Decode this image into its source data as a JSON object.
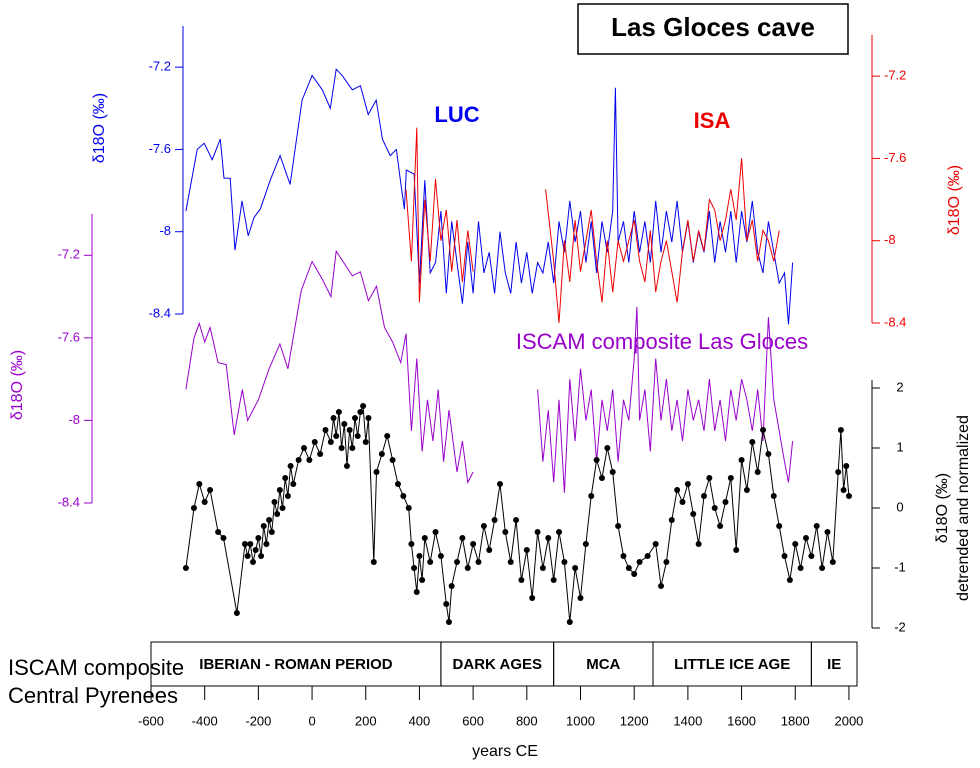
{
  "chart_data": [
    {
      "type": "line",
      "title": "Las Gloces cave",
      "ylabel": "δ18O (‰)",
      "ylim": [
        -8.4,
        -7.0
      ],
      "yticks": [
        -7.2,
        -7.6,
        -8,
        -8.4
      ],
      "series": [
        {
          "name": "LUC",
          "color": "#0000ee",
          "x": [
            -470,
            -428,
            -402,
            -372,
            -342,
            -328,
            -305,
            -287,
            -261,
            -238,
            -216,
            -193,
            -156,
            -119,
            -82,
            -37,
            0,
            38,
            68,
            90,
            112,
            150,
            180,
            209,
            239,
            262,
            291,
            314,
            329,
            344,
            351,
            380,
            400,
            420,
            440,
            460,
            480,
            500,
            520,
            540,
            560,
            580,
            600,
            620,
            640,
            660,
            680,
            700,
            720,
            740,
            760,
            780,
            800,
            820,
            840,
            860,
            880,
            900,
            920,
            940,
            960,
            980,
            1000,
            1020,
            1040,
            1060,
            1080,
            1100,
            1120,
            1130,
            1140,
            1160,
            1180,
            1200,
            1220,
            1240,
            1260,
            1280,
            1300,
            1320,
            1340,
            1360,
            1380,
            1400,
            1420,
            1440,
            1460,
            1480,
            1500,
            1520,
            1540,
            1560,
            1580,
            1600,
            1620,
            1640,
            1660,
            1680,
            1700,
            1720,
            1740,
            1760,
            1775,
            1790
          ],
          "values": [
            -7.9,
            -7.6,
            -7.57,
            -7.65,
            -7.55,
            -7.74,
            -7.74,
            -8.09,
            -7.85,
            -8.02,
            -7.93,
            -7.89,
            -7.75,
            -7.63,
            -7.77,
            -7.36,
            -7.24,
            -7.31,
            -7.4,
            -7.21,
            -7.24,
            -7.31,
            -7.29,
            -7.43,
            -7.36,
            -7.55,
            -7.63,
            -7.6,
            -7.75,
            -7.89,
            -7.7,
            -7.72,
            -8.25,
            -7.75,
            -8.2,
            -8.15,
            -7.9,
            -8.3,
            -7.95,
            -8.15,
            -8.35,
            -8.05,
            -8.3,
            -7.95,
            -8.2,
            -8.1,
            -8.3,
            -8.0,
            -8.2,
            -8.3,
            -8.05,
            -8.25,
            -8.1,
            -8.3,
            -8.15,
            -8.2,
            -8.05,
            -8.25,
            -7.95,
            -8.1,
            -7.85,
            -8.05,
            -7.9,
            -8.15,
            -7.95,
            -8.2,
            -7.95,
            -8.1,
            -7.9,
            -7.3,
            -8.05,
            -7.95,
            -8.15,
            -7.9,
            -8.1,
            -7.95,
            -8.15,
            -7.85,
            -8.1,
            -7.9,
            -8.05,
            -7.85,
            -8.1,
            -7.95,
            -8.15,
            -8.0,
            -8.1,
            -7.9,
            -8.15,
            -7.95,
            -8.1,
            -7.9,
            -8.15,
            -7.9,
            -8.05,
            -7.85,
            -8.1,
            -8.2,
            -7.95,
            -8.1,
            -8.25,
            -8.2,
            -8.45,
            -8.15
          ]
        }
      ]
    },
    {
      "type": "line",
      "ylabel": "δ18O (‰)",
      "ylim": [
        -8.4,
        -7.0
      ],
      "yticks": [
        -7.2,
        -7.6,
        -8,
        -8.4
      ],
      "series": [
        {
          "name": "ISA",
          "color": "#ee0000",
          "x": [
            350,
            370,
            390,
            400,
            420,
            440,
            460,
            480,
            500,
            520,
            540,
            560,
            580,
            600,
            740,
            870,
            900,
            920,
            940,
            960,
            980,
            1000,
            1020,
            1040,
            1060,
            1080,
            1100,
            1120,
            1140,
            1160,
            1180,
            1200,
            1220,
            1240,
            1260,
            1280,
            1300,
            1320,
            1340,
            1360,
            1380,
            1400,
            1420,
            1440,
            1460,
            1480,
            1500,
            1520,
            1540,
            1560,
            1580,
            1600,
            1620,
            1640,
            1660,
            1680,
            1700,
            1720,
            1740
          ],
          "values": [
            -7.75,
            -8.1,
            -7.45,
            -8.3,
            -7.8,
            -8.1,
            -7.7,
            -8.0,
            -7.85,
            -8.15,
            -7.9,
            -8.2,
            -7.95,
            -8.15,
            null,
            -7.75,
            -8.1,
            -8.4,
            -8.0,
            -8.2,
            -7.9,
            -8.15,
            -8.0,
            -7.85,
            -8.1,
            -8.3,
            -8.0,
            -8.25,
            -8.0,
            -8.1,
            -8.0,
            -7.9,
            -8.1,
            -8.2,
            -7.95,
            -8.25,
            -8.1,
            -8.0,
            -8.15,
            -8.3,
            -8.05,
            -7.9,
            -8.1,
            -7.95,
            -8.05,
            -7.8,
            -7.85,
            -8.0,
            -7.9,
            -7.75,
            -7.9,
            -7.6,
            -8.0,
            -7.9,
            -8.1,
            -7.95,
            -8.0,
            -8.1,
            -7.95
          ]
        }
      ]
    },
    {
      "type": "line",
      "ylabel": "δ18O (‰)",
      "ylim": [
        -8.4,
        -7.0
      ],
      "yticks": [
        -7.2,
        -7.6,
        -8,
        -8.4
      ],
      "series": [
        {
          "name": "ISCAM composite Las Gloces",
          "color": "#9900cc",
          "x": [
            -470,
            -440,
            -420,
            -400,
            -380,
            -350,
            -320,
            -290,
            -260,
            -240,
            -200,
            -160,
            -120,
            -90,
            -40,
            0,
            40,
            70,
            90,
            110,
            150,
            180,
            210,
            240,
            270,
            300,
            330,
            350,
            370,
            390,
            410,
            430,
            450,
            470,
            490,
            510,
            540,
            560,
            580,
            600,
            720,
            840,
            860,
            880,
            900,
            920,
            940,
            960,
            980,
            1000,
            1020,
            1040,
            1060,
            1080,
            1100,
            1120,
            1140,
            1160,
            1180,
            1200,
            1210,
            1220,
            1240,
            1260,
            1280,
            1300,
            1320,
            1340,
            1360,
            1380,
            1400,
            1420,
            1440,
            1460,
            1480,
            1500,
            1520,
            1540,
            1560,
            1580,
            1600,
            1620,
            1640,
            1660,
            1680,
            1700,
            1720,
            1740,
            1760,
            1775,
            1790
          ],
          "values": [
            -7.85,
            -7.6,
            -7.53,
            -7.62,
            -7.55,
            -7.72,
            -7.73,
            -8.07,
            -7.85,
            -8.0,
            -7.9,
            -7.75,
            -7.63,
            -7.75,
            -7.37,
            -7.23,
            -7.32,
            -7.4,
            -7.18,
            -7.22,
            -7.3,
            -7.28,
            -7.42,
            -7.35,
            -7.55,
            -7.62,
            -7.72,
            -7.58,
            -8.05,
            -7.7,
            -8.15,
            -7.9,
            -8.1,
            -7.85,
            -8.2,
            -7.95,
            -8.25,
            -8.1,
            -8.3,
            -8.25,
            null,
            -7.85,
            -8.2,
            -7.95,
            -8.3,
            -7.9,
            -8.35,
            -7.8,
            -8.1,
            -7.75,
            -8.0,
            -7.85,
            -8.2,
            -7.9,
            -8.05,
            -7.85,
            -8.2,
            -7.9,
            -8.0,
            -7.7,
            -7.45,
            -8.0,
            -7.85,
            -8.15,
            -7.7,
            -8.0,
            -7.8,
            -8.05,
            -7.9,
            -8.1,
            -7.85,
            -8.0,
            -7.9,
            -8.05,
            -7.8,
            -8.05,
            -7.9,
            -8.1,
            -7.85,
            -8.0,
            -7.8,
            -7.9,
            -8.05,
            -7.85,
            -8.1,
            -7.5,
            -7.9,
            -8.05,
            -8.2,
            -8.3,
            -8.1
          ]
        }
      ]
    },
    {
      "type": "line",
      "ylabel": [
        "δ18O (‰)",
        "detrended and normalized"
      ],
      "ylim": [
        -2,
        2
      ],
      "yticks": [
        2,
        1,
        0,
        -1,
        -2
      ],
      "xlabel": "years CE",
      "xlim": [
        -600,
        2030
      ],
      "xticks": [
        -600,
        -400,
        -200,
        0,
        200,
        400,
        600,
        800,
        1000,
        1200,
        1400,
        1600,
        1800,
        2000
      ],
      "periods": [
        {
          "label": "IBERIAN - ROMAN PERIOD",
          "start": -600,
          "end": 480
        },
        {
          "label": "DARK AGES",
          "start": 480,
          "end": 900
        },
        {
          "label": "MCA",
          "start": 900,
          "end": 1270
        },
        {
          "label": "LITTLE ICE AGE",
          "start": 1270,
          "end": 1860
        },
        {
          "label": "IE",
          "start": 1860,
          "end": 2030
        }
      ],
      "series": [
        {
          "name": "ISCAM composite Central Pyrenees",
          "color": "#000000",
          "markers": true,
          "x": [
            -470,
            -440,
            -420,
            -400,
            -380,
            -350,
            -330,
            -280,
            -250,
            -240,
            -230,
            -220,
            -210,
            -200,
            -190,
            -180,
            -170,
            -160,
            -150,
            -140,
            -130,
            -120,
            -110,
            -100,
            -90,
            -80,
            -70,
            -50,
            -30,
            -10,
            10,
            30,
            50,
            70,
            80,
            90,
            100,
            110,
            120,
            130,
            140,
            150,
            160,
            170,
            180,
            190,
            200,
            210,
            230,
            240,
            260,
            280,
            300,
            320,
            340,
            360,
            370,
            380,
            390,
            400,
            410,
            420,
            440,
            460,
            480,
            500,
            510,
            520,
            540,
            560,
            580,
            600,
            620,
            640,
            660,
            680,
            700,
            720,
            740,
            760,
            780,
            800,
            820,
            840,
            860,
            880,
            900,
            920,
            940,
            960,
            980,
            1000,
            1020,
            1040,
            1060,
            1080,
            1100,
            1120,
            1140,
            1160,
            1180,
            1200,
            1220,
            1250,
            1280,
            1300,
            1320,
            1340,
            1360,
            1380,
            1400,
            1420,
            1440,
            1460,
            1480,
            1500,
            1520,
            1540,
            1560,
            1580,
            1600,
            1620,
            1640,
            1660,
            1680,
            1700,
            1720,
            1740,
            1760,
            1780,
            1800,
            1820,
            1840,
            1860,
            1880,
            1900,
            1920,
            1940,
            1960,
            1970,
            1980,
            1990,
            2000
          ],
          "values": [
            -1.0,
            0.0,
            0.4,
            0.1,
            0.3,
            -0.4,
            -0.5,
            -1.75,
            -0.6,
            -0.8,
            -0.6,
            -0.9,
            -0.7,
            -0.5,
            -0.8,
            -0.3,
            -0.6,
            -0.2,
            -0.4,
            0.1,
            -0.1,
            0.3,
            0.0,
            0.5,
            0.2,
            0.7,
            0.4,
            0.8,
            1.0,
            0.8,
            1.1,
            0.9,
            1.3,
            1.1,
            1.5,
            1.2,
            1.6,
            1.0,
            1.4,
            0.7,
            1.3,
            1.0,
            1.5,
            1.2,
            1.6,
            1.7,
            1.1,
            1.5,
            -0.9,
            0.6,
            0.9,
            1.2,
            0.8,
            0.4,
            0.2,
            0.0,
            -0.6,
            -1.0,
            -1.4,
            -0.8,
            -1.2,
            -0.5,
            -0.9,
            -0.4,
            -0.8,
            -1.6,
            -1.9,
            -1.3,
            -0.9,
            -0.5,
            -1.0,
            -0.6,
            -0.9,
            -0.3,
            -0.7,
            -0.2,
            0.4,
            -0.4,
            -0.9,
            -0.2,
            -1.2,
            -0.7,
            -1.5,
            -0.4,
            -1.0,
            -0.5,
            -1.2,
            -0.4,
            -0.9,
            -1.9,
            -1.0,
            -1.5,
            -0.6,
            0.2,
            0.8,
            0.5,
            1.0,
            0.6,
            -0.3,
            -0.8,
            -1.0,
            -1.1,
            -0.9,
            -0.8,
            -0.6,
            -1.3,
            -0.9,
            -0.2,
            0.3,
            0.1,
            0.4,
            -0.1,
            -0.6,
            0.2,
            0.5,
            0.0,
            -0.3,
            0.1,
            0.5,
            -0.7,
            0.8,
            0.3,
            1.1,
            0.6,
            1.3,
            0.9,
            0.2,
            -0.3,
            -0.8,
            -1.2,
            -0.6,
            -1.0,
            -0.5,
            -0.8,
            -0.3,
            -1.0,
            -0.4,
            -0.9,
            0.6,
            1.3,
            0.3,
            0.7,
            0.2
          ]
        }
      ]
    }
  ]
}
